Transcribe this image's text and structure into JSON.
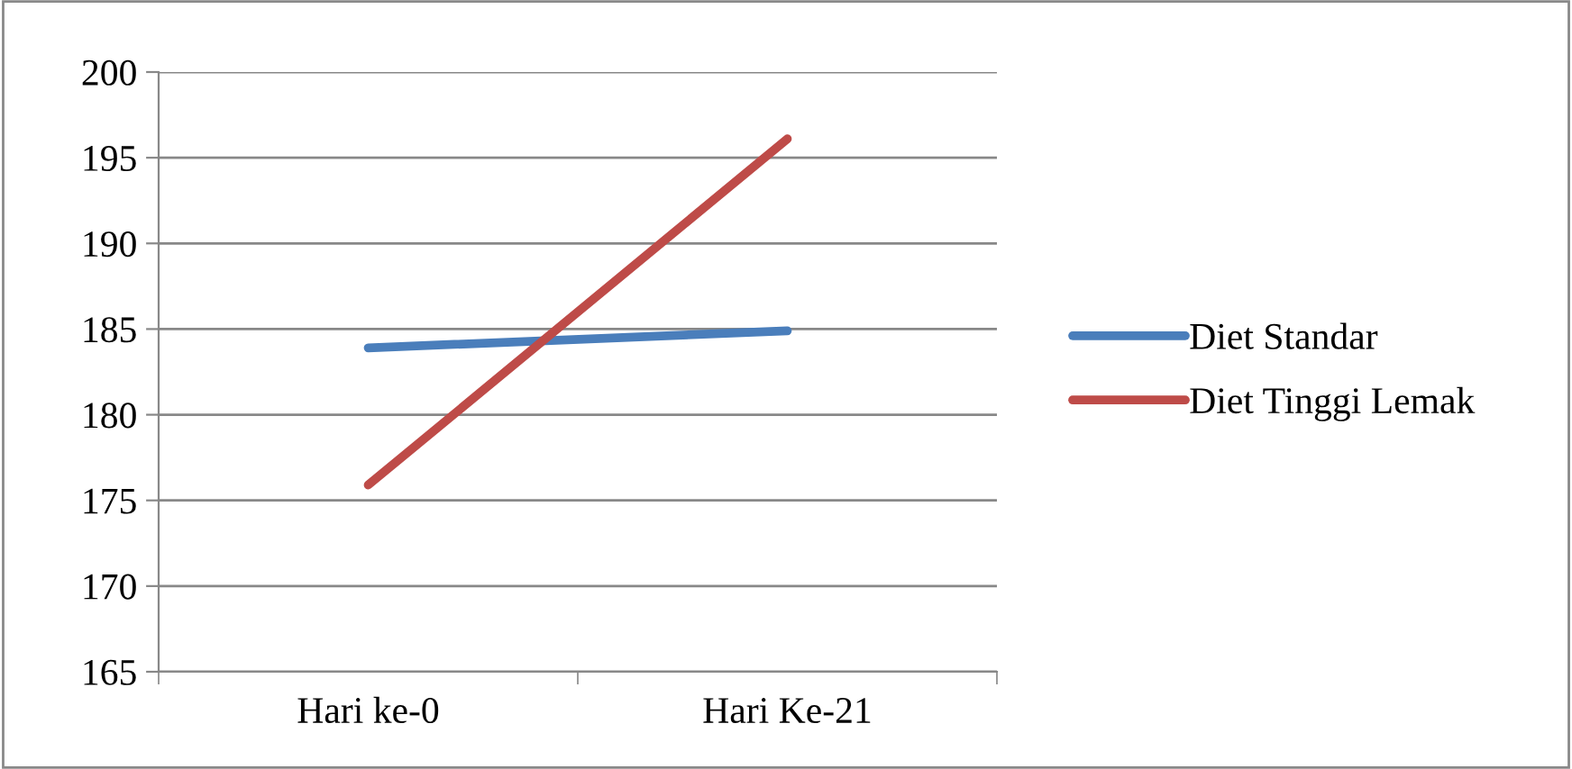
{
  "chart_data": {
    "type": "line",
    "categories": [
      "Hari ke-0",
      "Hari Ke-21"
    ],
    "series": [
      {
        "name": "Diet Standar",
        "color": "#4a7ebb",
        "values": [
          183.9,
          184.9
        ]
      },
      {
        "name": "Diet Tinggi Lemak",
        "color": "#be4b48",
        "values": [
          175.9,
          196.1
        ]
      }
    ],
    "ylim": [
      165,
      200
    ],
    "yticks": [
      165,
      170,
      175,
      180,
      185,
      190,
      195,
      200
    ],
    "grid": "y",
    "legend": "right",
    "marker": "none",
    "line_style": "solid"
  }
}
